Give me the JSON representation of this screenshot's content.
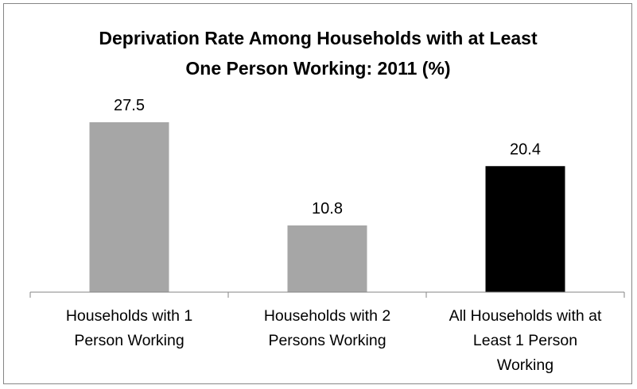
{
  "chart_data": {
    "type": "bar",
    "title": [
      "Deprivation Rate Among Households with at Least",
      "One Person Working:  2011 (%)"
    ],
    "categories": [
      [
        "Households with 1",
        "Person Working"
      ],
      [
        "Households with 2",
        "Persons Working"
      ],
      [
        "All Households with at",
        "Least 1 Person",
        "Working"
      ]
    ],
    "values": [
      27.5,
      10.8,
      20.4
    ],
    "data_labels": [
      "27.5",
      "10.8",
      "20.4"
    ],
    "colors": [
      "#a6a6a6",
      "#a6a6a6",
      "#000000"
    ],
    "axis_color": "#868686",
    "ylim": [
      0,
      27.5
    ],
    "grid": false,
    "legend": "none"
  }
}
